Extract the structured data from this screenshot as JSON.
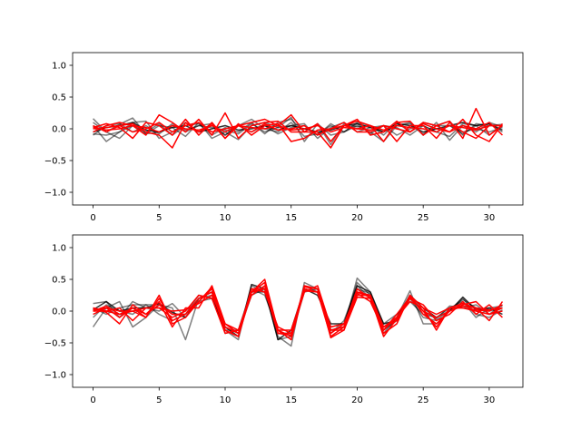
{
  "chart_data": [
    {
      "type": "line",
      "title": "",
      "xlabel": "",
      "ylabel": "",
      "xlim": [
        -1.55,
        32.55
      ],
      "ylim": [
        -1.2,
        1.2
      ],
      "xticks": [
        0,
        5,
        10,
        15,
        20,
        25,
        30
      ],
      "xtick_labels": [
        "0",
        "5",
        "10",
        "15",
        "20",
        "25",
        "30"
      ],
      "yticks": [
        -1.0,
        -0.5,
        0.0,
        0.5,
        1.0
      ],
      "ytick_labels": [
        "−1.0",
        "−0.5",
        "0.0",
        "0.5",
        "1.0"
      ],
      "grid": false,
      "legend": "none",
      "x": [
        0,
        1,
        2,
        3,
        4,
        5,
        6,
        7,
        8,
        9,
        10,
        11,
        12,
        13,
        14,
        15,
        16,
        17,
        18,
        19,
        20,
        21,
        22,
        23,
        24,
        25,
        26,
        27,
        28,
        29,
        30,
        31
      ],
      "series": [
        {
          "color": "#000000",
          "opacity": 0.5,
          "values": [
            0.16,
            -0.05,
            0.07,
            0.17,
            -0.08,
            0.05,
            0.02,
            -0.12,
            0.1,
            -0.15,
            -0.05,
            -0.17,
            0.05,
            0.1,
            0.02,
            0.18,
            -0.2,
            0.08,
            -0.25,
            0.08,
            0.03,
            0.05,
            -0.1,
            0.1,
            -0.05,
            0.1,
            0.05,
            0.12,
            -0.1,
            0.08,
            0.05,
            0.07
          ]
        },
        {
          "color": "#000000",
          "opacity": 0.5,
          "values": [
            0.05,
            -0.2,
            -0.05,
            0.1,
            0.12,
            -0.15,
            -0.05,
            0.1,
            -0.05,
            0.05,
            -0.1,
            0.05,
            0.15,
            0.0,
            -0.05,
            0.1,
            -0.12,
            -0.08,
            0.05,
            -0.05,
            0.05,
            -0.05,
            -0.2,
            0.05,
            0.1,
            -0.1,
            0.1,
            -0.18,
            0.05,
            -0.05,
            0.1,
            0.03
          ]
        },
        {
          "color": "#000000",
          "opacity": 0.5,
          "values": [
            -0.08,
            -0.1,
            -0.05,
            0.05,
            -0.08,
            -0.05,
            0.05,
            -0.02,
            0.05,
            0.02,
            -0.02,
            -0.08,
            0.08,
            -0.05,
            0.02,
            0.05,
            0.08,
            -0.15,
            0.02,
            0.1,
            -0.05,
            0.02,
            0.05,
            -0.1,
            0.0,
            0.05,
            -0.05,
            0.05,
            -0.05,
            0.0,
            -0.05,
            0.02
          ]
        },
        {
          "color": "#000000",
          "opacity": 0.5,
          "values": [
            0.1,
            -0.05,
            -0.15,
            0.05,
            -0.05,
            0.08,
            -0.1,
            0.05,
            0.08,
            -0.1,
            0.02,
            -0.05,
            0.1,
            -0.08,
            0.1,
            0.15,
            -0.05,
            0.08,
            -0.1,
            -0.05,
            0.08,
            -0.08,
            0.05,
            0.02,
            -0.1,
            0.05,
            -0.05,
            -0.12,
            0.08,
            0.05,
            -0.1,
            0.06
          ]
        },
        {
          "color": "#000000",
          "opacity": 0.5,
          "values": [
            -0.1,
            0.05,
            0.08,
            -0.05,
            0.05,
            -0.08,
            0.08,
            -0.05,
            0.05,
            0.08,
            -0.1,
            0.05,
            -0.05,
            0.05,
            -0.08,
            0.02,
            0.05,
            -0.1,
            0.08,
            -0.05,
            0.1,
            0.05,
            -0.05,
            0.05,
            0.08,
            -0.08,
            0.05,
            0.05,
            -0.08,
            0.05,
            0.08,
            -0.05
          ]
        },
        {
          "color": "#000000",
          "opacity": 0.8,
          "values": [
            -0.05,
            0.02,
            0.05,
            0.1,
            -0.02,
            -0.05,
            0.02,
            0.05,
            -0.05,
            0.0,
            0.05,
            -0.02,
            0.0,
            0.05,
            -0.02,
            0.05,
            0.0,
            -0.05,
            -0.02,
            0.05,
            0.08,
            0.02,
            -0.05,
            0.08,
            0.05,
            -0.05,
            0.0,
            0.05,
            0.1,
            0.05,
            0.08,
            -0.02
          ]
        },
        {
          "color": "#ff0000",
          "opacity": 1.0,
          "values": [
            0.02,
            0.08,
            0.02,
            -0.15,
            0.1,
            0.05,
            -0.1,
            0.15,
            -0.1,
            0.1,
            -0.15,
            0.05,
            0.1,
            0.15,
            0.05,
            0.22,
            -0.05,
            -0.05,
            -0.3,
            0.05,
            0.12,
            0.05,
            -0.2,
            0.1,
            0.12,
            -0.1,
            0.05,
            0.12,
            -0.15,
            0.32,
            -0.1,
            0.05
          ]
        },
        {
          "color": "#ff0000",
          "opacity": 1.0,
          "values": [
            -0.05,
            0.05,
            0.1,
            0.05,
            -0.1,
            0.22,
            0.1,
            -0.05,
            0.15,
            -0.1,
            0.25,
            -0.15,
            0.05,
            0.1,
            0.12,
            -0.05,
            -0.05,
            0.08,
            -0.2,
            0.05,
            0.15,
            -0.1,
            -0.05,
            0.12,
            -0.05,
            0.1,
            0.05,
            -0.05,
            0.15,
            -0.1,
            -0.2,
            0.08
          ]
        },
        {
          "color": "#ff0000",
          "opacity": 1.0,
          "values": [
            0.05,
            -0.05,
            0.05,
            0.08,
            -0.05,
            -0.1,
            -0.3,
            0.1,
            -0.05,
            0.08,
            -0.15,
            0.08,
            -0.1,
            0.05,
            0.08,
            -0.2,
            -0.15,
            -0.02,
            0.0,
            0.1,
            -0.05,
            -0.05,
            0.05,
            -0.2,
            0.05,
            0.05,
            -0.15,
            0.1,
            -0.05,
            -0.15,
            0.05,
            0.05
          ]
        },
        {
          "color": "#ff0000",
          "opacity": 1.0,
          "values": [
            0.0,
            0.02,
            0.05,
            -0.05,
            0.0,
            0.1,
            -0.05,
            0.05,
            0.1,
            -0.05,
            0.0,
            0.05,
            -0.05,
            0.08,
            -0.02,
            0.0,
            0.05,
            -0.1,
            0.0,
            0.05,
            0.0,
            -0.02,
            0.05,
            0.0,
            -0.05,
            0.08,
            0.0,
            -0.05,
            0.05,
            0.0,
            0.1,
            -0.1
          ]
        },
        {
          "color": "#ff0000",
          "opacity": 1.0,
          "values": [
            0.02,
            -0.02,
            0.0,
            0.05,
            0.02,
            -0.05,
            0.05,
            0.0,
            -0.02,
            0.05,
            -0.05,
            0.05,
            0.02,
            0.0,
            0.05,
            -0.02,
            0.0,
            0.05,
            -0.05,
            0.02,
            0.0,
            0.05,
            -0.02,
            0.05,
            0.02,
            0.0,
            -0.05,
            0.05,
            0.02,
            -0.02,
            0.05,
            0.05
          ]
        }
      ]
    },
    {
      "type": "line",
      "title": "",
      "xlabel": "",
      "ylabel": "",
      "xlim": [
        -1.55,
        32.55
      ],
      "ylim": [
        -1.2,
        1.2
      ],
      "xticks": [
        0,
        5,
        10,
        15,
        20,
        25,
        30
      ],
      "xtick_labels": [
        "0",
        "5",
        "10",
        "15",
        "20",
        "25",
        "30"
      ],
      "yticks": [
        -1.0,
        -0.5,
        0.0,
        0.5,
        1.0
      ],
      "ytick_labels": [
        "−1.0",
        "−0.5",
        "0.0",
        "0.5",
        "1.0"
      ],
      "grid": false,
      "legend": "none",
      "x": [
        0,
        1,
        2,
        3,
        4,
        5,
        6,
        7,
        8,
        9,
        10,
        11,
        12,
        13,
        14,
        15,
        16,
        17,
        18,
        19,
        20,
        21,
        22,
        23,
        24,
        25,
        26,
        27,
        28,
        29,
        30,
        31
      ],
      "series": [
        {
          "color": "#000000",
          "opacity": 0.5,
          "values": [
            -0.25,
            0.05,
            0.15,
            -0.25,
            -0.1,
            0.1,
            0.05,
            -0.45,
            0.2,
            0.25,
            -0.3,
            -0.45,
            0.4,
            0.3,
            -0.4,
            -0.55,
            0.45,
            0.35,
            -0.3,
            -0.25,
            0.52,
            0.3,
            -0.25,
            -0.1,
            0.32,
            -0.2,
            -0.2,
            0.0,
            0.2,
            -0.05,
            -0.1,
            0.02
          ]
        },
        {
          "color": "#000000",
          "opacity": 0.5,
          "values": [
            0.12,
            0.15,
            -0.1,
            0.15,
            0.05,
            0.0,
            0.12,
            -0.1,
            0.15,
            0.2,
            -0.25,
            -0.35,
            0.25,
            0.35,
            -0.45,
            -0.4,
            0.4,
            0.3,
            -0.25,
            -0.2,
            0.45,
            0.25,
            -0.2,
            -0.05,
            0.15,
            -0.05,
            -0.1,
            0.05,
            0.15,
            -0.1,
            0.05,
            0.08
          ]
        },
        {
          "color": "#000000",
          "opacity": 0.5,
          "values": [
            0.05,
            -0.05,
            0.05,
            0.1,
            0.1,
            -0.05,
            -0.15,
            -0.05,
            0.2,
            0.3,
            -0.35,
            -0.3,
            0.3,
            0.3,
            -0.35,
            -0.35,
            0.35,
            0.3,
            -0.35,
            -0.15,
            0.4,
            0.2,
            -0.3,
            -0.15,
            0.2,
            -0.1,
            -0.15,
            0.02,
            0.18,
            0.05,
            0.0,
            0.05
          ]
        },
        {
          "color": "#000000",
          "opacity": 0.5,
          "values": [
            -0.1,
            0.1,
            0.0,
            -0.05,
            0.1,
            0.1,
            -0.05,
            -0.05,
            0.25,
            0.2,
            -0.3,
            -0.3,
            0.35,
            0.25,
            -0.3,
            -0.4,
            0.3,
            0.35,
            -0.3,
            -0.25,
            0.35,
            0.28,
            -0.35,
            -0.1,
            0.25,
            0.0,
            -0.12,
            0.08,
            0.05,
            0.1,
            -0.05,
            0.1
          ]
        },
        {
          "color": "#000000",
          "opacity": 0.8,
          "values": [
            0.02,
            0.15,
            0.0,
            0.05,
            0.05,
            0.12,
            -0.02,
            -0.1,
            0.2,
            0.3,
            -0.25,
            -0.4,
            0.42,
            0.35,
            -0.45,
            -0.3,
            0.35,
            0.25,
            -0.2,
            -0.2,
            0.4,
            0.3,
            -0.2,
            -0.15,
            0.25,
            0.05,
            -0.1,
            0.0,
            0.22,
            0.02,
            0.05,
            -0.05
          ]
        },
        {
          "color": "#ff0000",
          "opacity": 1.0,
          "values": [
            0.0,
            0.08,
            -0.05,
            0.0,
            -0.1,
            0.25,
            -0.2,
            -0.1,
            0.15,
            0.38,
            -0.3,
            -0.4,
            0.3,
            0.5,
            -0.3,
            -0.45,
            0.35,
            0.3,
            -0.4,
            -0.25,
            0.35,
            0.2,
            -0.35,
            -0.2,
            0.25,
            0.05,
            -0.3,
            0.05,
            0.12,
            0.05,
            -0.15,
            0.15
          ]
        },
        {
          "color": "#ff0000",
          "opacity": 1.0,
          "values": [
            0.05,
            -0.02,
            -0.2,
            0.1,
            -0.05,
            0.15,
            -0.25,
            0.05,
            0.05,
            0.4,
            -0.2,
            -0.35,
            0.35,
            0.35,
            -0.3,
            -0.4,
            0.4,
            0.35,
            -0.42,
            -0.3,
            0.3,
            0.25,
            -0.3,
            -0.1,
            0.2,
            0.1,
            -0.15,
            -0.05,
            0.15,
            -0.05,
            0.1,
            -0.1
          ]
        },
        {
          "color": "#ff0000",
          "opacity": 1.0,
          "values": [
            0.05,
            0.0,
            0.05,
            -0.15,
            0.05,
            0.05,
            -0.1,
            0.0,
            0.25,
            0.2,
            -0.35,
            -0.3,
            0.25,
            0.4,
            -0.35,
            -0.35,
            0.3,
            0.4,
            -0.25,
            -0.2,
            0.25,
            0.25,
            -0.25,
            -0.15,
            0.25,
            -0.05,
            -0.2,
            0.0,
            0.1,
            0.15,
            -0.05,
            0.05
          ]
        },
        {
          "color": "#ff0000",
          "opacity": 1.0,
          "values": [
            -0.05,
            0.05,
            -0.1,
            0.05,
            -0.1,
            0.2,
            -0.15,
            -0.05,
            0.2,
            0.3,
            -0.3,
            -0.4,
            0.35,
            0.3,
            -0.25,
            -0.35,
            0.38,
            0.35,
            -0.35,
            -0.2,
            0.3,
            0.22,
            -0.4,
            -0.12,
            0.2,
            0.0,
            -0.25,
            0.05,
            0.05,
            0.0,
            -0.05,
            0.0
          ]
        },
        {
          "color": "#ff0000",
          "opacity": 1.0,
          "values": [
            0.0,
            0.0,
            -0.05,
            0.05,
            -0.05,
            0.1,
            -0.05,
            -0.05,
            0.15,
            0.35,
            -0.25,
            -0.35,
            0.3,
            0.45,
            -0.3,
            -0.3,
            0.32,
            0.3,
            -0.3,
            -0.25,
            0.28,
            0.15,
            -0.3,
            -0.05,
            0.22,
            0.0,
            -0.1,
            0.0,
            0.08,
            0.05,
            0.02,
            0.05
          ]
        },
        {
          "color": "#ff0000",
          "opacity": 1.0,
          "values": [
            0.02,
            0.05,
            0.0,
            0.0,
            0.05,
            0.05,
            0.0,
            0.02,
            0.12,
            0.25,
            -0.2,
            -0.3,
            0.3,
            0.35,
            -0.35,
            -0.38,
            0.35,
            0.3,
            -0.3,
            -0.3,
            0.22,
            0.2,
            -0.25,
            -0.1,
            0.15,
            0.05,
            -0.05,
            0.05,
            0.05,
            0.02,
            0.0,
            0.1
          ]
        }
      ]
    }
  ]
}
